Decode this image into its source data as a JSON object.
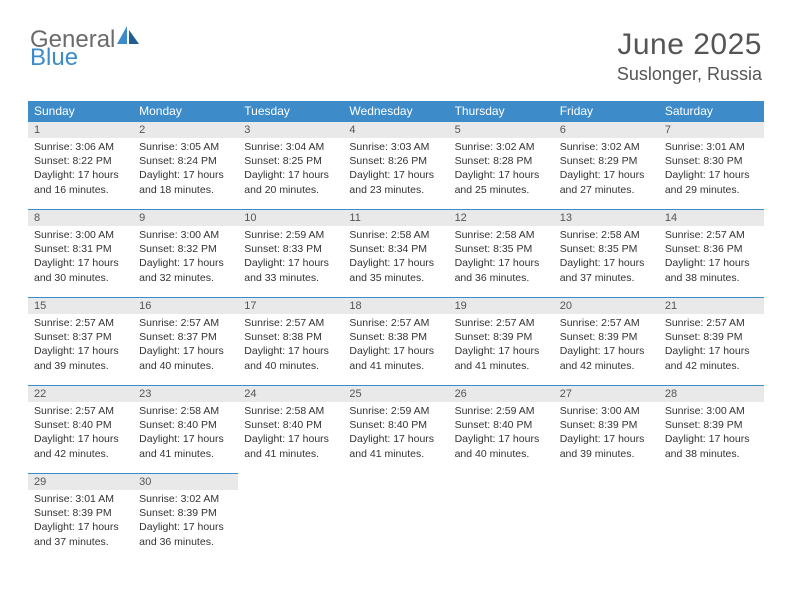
{
  "logo": {
    "text1": "General",
    "text2": "Blue"
  },
  "title": "June 2025",
  "location": "Suslonger, Russia",
  "colors": {
    "header_bg": "#3d8bc9",
    "header_fg": "#ffffff",
    "daynum_bg": "#e9e9e9",
    "text": "#333333",
    "title": "#555555",
    "rule": "#3d8bc9"
  },
  "typography": {
    "title_fontsize": 30,
    "location_fontsize": 18,
    "weekday_fontsize": 12,
    "daynum_fontsize": 11,
    "body_fontsize": 10.5
  },
  "weekdays": [
    "Sunday",
    "Monday",
    "Tuesday",
    "Wednesday",
    "Thursday",
    "Friday",
    "Saturday"
  ],
  "weeks": [
    [
      {
        "n": "1",
        "sr": "Sunrise: 3:06 AM",
        "ss": "Sunset: 8:22 PM",
        "dl": "Daylight: 17 hours and 16 minutes."
      },
      {
        "n": "2",
        "sr": "Sunrise: 3:05 AM",
        "ss": "Sunset: 8:24 PM",
        "dl": "Daylight: 17 hours and 18 minutes."
      },
      {
        "n": "3",
        "sr": "Sunrise: 3:04 AM",
        "ss": "Sunset: 8:25 PM",
        "dl": "Daylight: 17 hours and 20 minutes."
      },
      {
        "n": "4",
        "sr": "Sunrise: 3:03 AM",
        "ss": "Sunset: 8:26 PM",
        "dl": "Daylight: 17 hours and 23 minutes."
      },
      {
        "n": "5",
        "sr": "Sunrise: 3:02 AM",
        "ss": "Sunset: 8:28 PM",
        "dl": "Daylight: 17 hours and 25 minutes."
      },
      {
        "n": "6",
        "sr": "Sunrise: 3:02 AM",
        "ss": "Sunset: 8:29 PM",
        "dl": "Daylight: 17 hours and 27 minutes."
      },
      {
        "n": "7",
        "sr": "Sunrise: 3:01 AM",
        "ss": "Sunset: 8:30 PM",
        "dl": "Daylight: 17 hours and 29 minutes."
      }
    ],
    [
      {
        "n": "8",
        "sr": "Sunrise: 3:00 AM",
        "ss": "Sunset: 8:31 PM",
        "dl": "Daylight: 17 hours and 30 minutes."
      },
      {
        "n": "9",
        "sr": "Sunrise: 3:00 AM",
        "ss": "Sunset: 8:32 PM",
        "dl": "Daylight: 17 hours and 32 minutes."
      },
      {
        "n": "10",
        "sr": "Sunrise: 2:59 AM",
        "ss": "Sunset: 8:33 PM",
        "dl": "Daylight: 17 hours and 33 minutes."
      },
      {
        "n": "11",
        "sr": "Sunrise: 2:58 AM",
        "ss": "Sunset: 8:34 PM",
        "dl": "Daylight: 17 hours and 35 minutes."
      },
      {
        "n": "12",
        "sr": "Sunrise: 2:58 AM",
        "ss": "Sunset: 8:35 PM",
        "dl": "Daylight: 17 hours and 36 minutes."
      },
      {
        "n": "13",
        "sr": "Sunrise: 2:58 AM",
        "ss": "Sunset: 8:35 PM",
        "dl": "Daylight: 17 hours and 37 minutes."
      },
      {
        "n": "14",
        "sr": "Sunrise: 2:57 AM",
        "ss": "Sunset: 8:36 PM",
        "dl": "Daylight: 17 hours and 38 minutes."
      }
    ],
    [
      {
        "n": "15",
        "sr": "Sunrise: 2:57 AM",
        "ss": "Sunset: 8:37 PM",
        "dl": "Daylight: 17 hours and 39 minutes."
      },
      {
        "n": "16",
        "sr": "Sunrise: 2:57 AM",
        "ss": "Sunset: 8:37 PM",
        "dl": "Daylight: 17 hours and 40 minutes."
      },
      {
        "n": "17",
        "sr": "Sunrise: 2:57 AM",
        "ss": "Sunset: 8:38 PM",
        "dl": "Daylight: 17 hours and 40 minutes."
      },
      {
        "n": "18",
        "sr": "Sunrise: 2:57 AM",
        "ss": "Sunset: 8:38 PM",
        "dl": "Daylight: 17 hours and 41 minutes."
      },
      {
        "n": "19",
        "sr": "Sunrise: 2:57 AM",
        "ss": "Sunset: 8:39 PM",
        "dl": "Daylight: 17 hours and 41 minutes."
      },
      {
        "n": "20",
        "sr": "Sunrise: 2:57 AM",
        "ss": "Sunset: 8:39 PM",
        "dl": "Daylight: 17 hours and 42 minutes."
      },
      {
        "n": "21",
        "sr": "Sunrise: 2:57 AM",
        "ss": "Sunset: 8:39 PM",
        "dl": "Daylight: 17 hours and 42 minutes."
      }
    ],
    [
      {
        "n": "22",
        "sr": "Sunrise: 2:57 AM",
        "ss": "Sunset: 8:40 PM",
        "dl": "Daylight: 17 hours and 42 minutes."
      },
      {
        "n": "23",
        "sr": "Sunrise: 2:58 AM",
        "ss": "Sunset: 8:40 PM",
        "dl": "Daylight: 17 hours and 41 minutes."
      },
      {
        "n": "24",
        "sr": "Sunrise: 2:58 AM",
        "ss": "Sunset: 8:40 PM",
        "dl": "Daylight: 17 hours and 41 minutes."
      },
      {
        "n": "25",
        "sr": "Sunrise: 2:59 AM",
        "ss": "Sunset: 8:40 PM",
        "dl": "Daylight: 17 hours and 41 minutes."
      },
      {
        "n": "26",
        "sr": "Sunrise: 2:59 AM",
        "ss": "Sunset: 8:40 PM",
        "dl": "Daylight: 17 hours and 40 minutes."
      },
      {
        "n": "27",
        "sr": "Sunrise: 3:00 AM",
        "ss": "Sunset: 8:39 PM",
        "dl": "Daylight: 17 hours and 39 minutes."
      },
      {
        "n": "28",
        "sr": "Sunrise: 3:00 AM",
        "ss": "Sunset: 8:39 PM",
        "dl": "Daylight: 17 hours and 38 minutes."
      }
    ],
    [
      {
        "n": "29",
        "sr": "Sunrise: 3:01 AM",
        "ss": "Sunset: 8:39 PM",
        "dl": "Daylight: 17 hours and 37 minutes."
      },
      {
        "n": "30",
        "sr": "Sunrise: 3:02 AM",
        "ss": "Sunset: 8:39 PM",
        "dl": "Daylight: 17 hours and 36 minutes."
      },
      null,
      null,
      null,
      null,
      null
    ]
  ]
}
